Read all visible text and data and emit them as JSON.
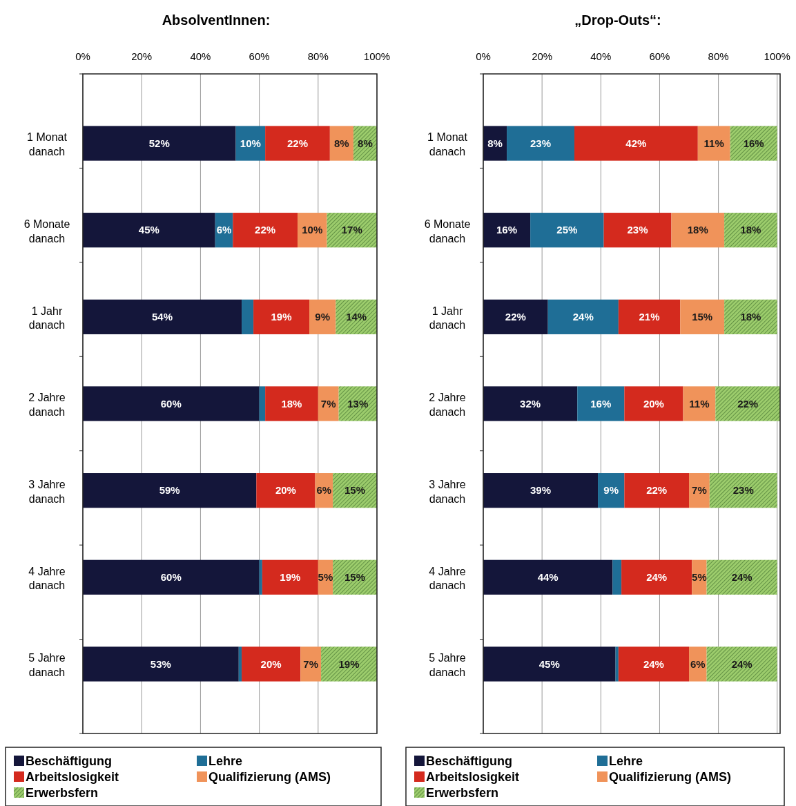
{
  "chart_data": [
    {
      "type": "bar",
      "orientation": "horizontal",
      "stacked": true,
      "title": "AbsolventInnen:",
      "categories": [
        "1 Monat danach",
        "6 Monate danach",
        "1 Jahr danach",
        "2 Jahre danach",
        "3 Jahre danach",
        "4 Jahre danach",
        "5 Jahre danach"
      ],
      "xlim": [
        0,
        100
      ],
      "xticks": [
        {
          "value": 0,
          "label": "0%"
        },
        {
          "value": 20,
          "label": "20%"
        },
        {
          "value": 40,
          "label": "40%"
        },
        {
          "value": 60,
          "label": "60%"
        },
        {
          "value": 80,
          "label": "80%"
        },
        {
          "value": 100,
          "label": "100%"
        }
      ],
      "grid": "x",
      "legend": "bottom",
      "series": [
        {
          "name": "Beschäftigung",
          "color": "#14163a",
          "values": [
            52,
            45,
            54,
            60,
            59,
            60,
            53
          ],
          "value_labels": [
            "52%",
            "45%",
            "54%",
            "60%",
            "59%",
            "60%",
            "53%"
          ]
        },
        {
          "name": "Lehre",
          "color": "#1f6e96",
          "values": [
            10,
            6,
            4,
            2,
            0,
            1,
            1
          ],
          "value_labels": [
            "10%",
            "6%",
            null,
            null,
            null,
            null,
            null
          ]
        },
        {
          "name": "Arbeitslosigkeit",
          "color": "#d42a1e",
          "values": [
            22,
            22,
            19,
            18,
            20,
            19,
            20
          ],
          "value_labels": [
            "22%",
            "22%",
            "19%",
            "18%",
            "20%",
            "19%",
            "20%"
          ]
        },
        {
          "name": "Qualifizierung (AMS)",
          "color": "#f0935a",
          "values": [
            8,
            10,
            9,
            7,
            6,
            5,
            7
          ],
          "value_labels": [
            "8%",
            "10%",
            "9%",
            "7%",
            "6%",
            "5%",
            "7%"
          ]
        },
        {
          "name": "Erwerbsfern",
          "color": "#9ccc6c",
          "values": [
            8,
            17,
            14,
            13,
            15,
            15,
            19
          ],
          "value_labels": [
            "8%",
            "17%",
            "14%",
            "13%",
            "15%",
            "15%",
            "19%"
          ]
        }
      ]
    },
    {
      "type": "bar",
      "orientation": "horizontal",
      "stacked": true,
      "title": "„Drop-Outs“:",
      "categories": [
        "1 Monat danach",
        "6 Monate danach",
        "1 Jahr danach",
        "2 Jahre danach",
        "3 Jahre danach",
        "4 Jahre danach",
        "5 Jahre danach"
      ],
      "xlim": [
        0,
        101
      ],
      "xticks": [
        {
          "value": 0,
          "label": "0%"
        },
        {
          "value": 20,
          "label": "20%"
        },
        {
          "value": 40,
          "label": "40%"
        },
        {
          "value": 60,
          "label": "60%"
        },
        {
          "value": 80,
          "label": "80%"
        },
        {
          "value": 100,
          "label": "100%"
        }
      ],
      "grid": "x",
      "legend": "bottom",
      "series": [
        {
          "name": "Beschäftigung",
          "color": "#14163a",
          "values": [
            8,
            16,
            22,
            32,
            39,
            44,
            45
          ],
          "value_labels": [
            "8%",
            "16%",
            "22%",
            "32%",
            "39%",
            "44%",
            "45%"
          ]
        },
        {
          "name": "Lehre",
          "color": "#1f6e96",
          "values": [
            23,
            25,
            24,
            16,
            9,
            3,
            1
          ],
          "value_labels": [
            "23%",
            "25%",
            "24%",
            "16%",
            "9%",
            null,
            null
          ]
        },
        {
          "name": "Arbeitslosigkeit",
          "color": "#d42a1e",
          "values": [
            42,
            23,
            21,
            20,
            22,
            24,
            24
          ],
          "value_labels": [
            "42%",
            "23%",
            "21%",
            "20%",
            "22%",
            "24%",
            "24%"
          ]
        },
        {
          "name": "Qualifizierung (AMS)",
          "color": "#f0935a",
          "values": [
            11,
            18,
            15,
            11,
            7,
            5,
            6
          ],
          "value_labels": [
            "11%",
            "18%",
            "15%",
            "11%",
            "7%",
            "5%",
            "6%"
          ]
        },
        {
          "name": "Erwerbsfern",
          "color": "#9ccc6c",
          "values": [
            16,
            18,
            18,
            22,
            23,
            24,
            24
          ],
          "value_labels": [
            "16%",
            "18%",
            "18%",
            "22%",
            "23%",
            "24%",
            "24%"
          ]
        }
      ]
    }
  ]
}
